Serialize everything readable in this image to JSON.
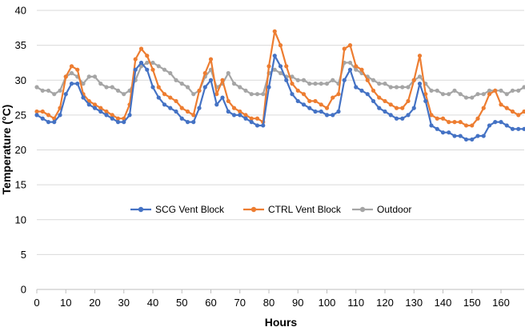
{
  "chart_data": {
    "type": "line",
    "xlabel": "Hours",
    "ylabel": "Temperature (°C)",
    "xlim": [
      0,
      168
    ],
    "ylim": [
      0,
      40
    ],
    "x_ticks": [
      0,
      10,
      20,
      30,
      40,
      50,
      60,
      70,
      80,
      90,
      100,
      110,
      120,
      130,
      140,
      150,
      160
    ],
    "y_ticks": [
      0,
      5,
      10,
      15,
      20,
      25,
      30,
      35,
      40
    ],
    "grid": "horizontal",
    "legend": "center",
    "x": [
      0,
      2,
      4,
      6,
      8,
      10,
      12,
      14,
      16,
      18,
      20,
      22,
      24,
      26,
      28,
      30,
      32,
      34,
      36,
      38,
      40,
      42,
      44,
      46,
      48,
      50,
      52,
      54,
      56,
      58,
      60,
      62,
      64,
      66,
      68,
      70,
      72,
      74,
      76,
      78,
      80,
      82,
      84,
      86,
      88,
      90,
      92,
      94,
      96,
      98,
      100,
      102,
      104,
      106,
      108,
      110,
      112,
      114,
      116,
      118,
      120,
      122,
      124,
      126,
      128,
      130,
      132,
      134,
      136,
      138,
      140,
      142,
      144,
      146,
      148,
      150,
      152,
      154,
      156,
      158,
      160,
      162,
      164,
      166,
      168
    ],
    "series": [
      {
        "name": "SCG Vent Block",
        "color": "#4472C4",
        "values": [
          25.0,
          24.5,
          24.0,
          24.0,
          25.0,
          28.0,
          29.5,
          29.5,
          27.5,
          26.5,
          26.0,
          25.5,
          25.0,
          24.5,
          24.0,
          24.0,
          25.0,
          31.5,
          32.5,
          31.5,
          29.0,
          27.5,
          26.5,
          26.0,
          25.5,
          24.5,
          24.0,
          24.0,
          26.0,
          29.0,
          30.0,
          26.5,
          27.5,
          25.5,
          25.0,
          25.0,
          24.5,
          24.0,
          23.5,
          23.5,
          29.0,
          33.5,
          32.0,
          30.0,
          28.0,
          27.0,
          26.5,
          26.0,
          25.5,
          25.5,
          25.0,
          25.0,
          25.5,
          30.0,
          31.5,
          29.0,
          28.5,
          28.0,
          27.0,
          26.0,
          25.5,
          25.0,
          24.5,
          24.5,
          25.0,
          26.0,
          29.5,
          27.0,
          23.5,
          23.0,
          22.5,
          22.5,
          22.0,
          22.0,
          21.5,
          21.5,
          22.0,
          22.0,
          23.5,
          24.0,
          24.0,
          23.5,
          23.0,
          23.0,
          23.0
        ]
      },
      {
        "name": "CTRL Vent Block",
        "color": "#ED7D31",
        "values": [
          25.5,
          25.5,
          25.0,
          24.5,
          26.0,
          30.5,
          32.0,
          31.5,
          28.0,
          27.0,
          26.5,
          26.0,
          25.5,
          25.0,
          24.5,
          24.5,
          26.5,
          33.0,
          34.5,
          33.5,
          31.5,
          29.0,
          28.0,
          27.5,
          27.0,
          26.0,
          25.5,
          25.0,
          28.5,
          31.0,
          33.0,
          28.0,
          30.0,
          27.0,
          26.0,
          25.5,
          25.0,
          24.5,
          24.5,
          24.0,
          32.0,
          37.0,
          35.0,
          32.0,
          29.5,
          28.5,
          28.0,
          27.0,
          27.0,
          26.5,
          26.0,
          27.5,
          28.0,
          34.5,
          35.0,
          32.0,
          31.5,
          30.0,
          28.5,
          27.5,
          27.0,
          26.5,
          26.0,
          26.0,
          27.0,
          30.0,
          33.5,
          28.0,
          25.0,
          24.5,
          24.5,
          24.0,
          24.0,
          24.0,
          23.5,
          23.5,
          24.5,
          26.0,
          28.0,
          28.5,
          26.5,
          26.0,
          25.5,
          25.0,
          25.5
        ]
      },
      {
        "name": "Outdoor",
        "color": "#A5A5A5",
        "values": [
          29.0,
          28.5,
          28.5,
          28.0,
          28.5,
          30.5,
          31.0,
          30.5,
          29.5,
          30.5,
          30.5,
          29.5,
          29.0,
          29.0,
          28.5,
          28.0,
          28.5,
          30.0,
          32.0,
          32.5,
          32.5,
          32.0,
          31.5,
          31.0,
          30.0,
          29.5,
          29.0,
          28.0,
          28.5,
          30.5,
          31.5,
          29.0,
          29.5,
          31.0,
          29.5,
          29.0,
          28.5,
          28.0,
          28.0,
          28.0,
          31.0,
          31.5,
          31.0,
          30.5,
          30.5,
          30.0,
          30.0,
          29.5,
          29.5,
          29.5,
          29.5,
          30.0,
          29.5,
          32.5,
          32.5,
          31.5,
          31.0,
          30.5,
          30.0,
          29.5,
          29.5,
          29.0,
          29.0,
          29.0,
          29.0,
          30.0,
          30.5,
          29.5,
          28.5,
          28.5,
          28.0,
          28.0,
          28.5,
          28.0,
          27.5,
          27.5,
          28.0,
          28.0,
          28.5,
          28.5,
          28.5,
          28.0,
          28.5,
          28.5,
          29.0
        ]
      }
    ]
  }
}
